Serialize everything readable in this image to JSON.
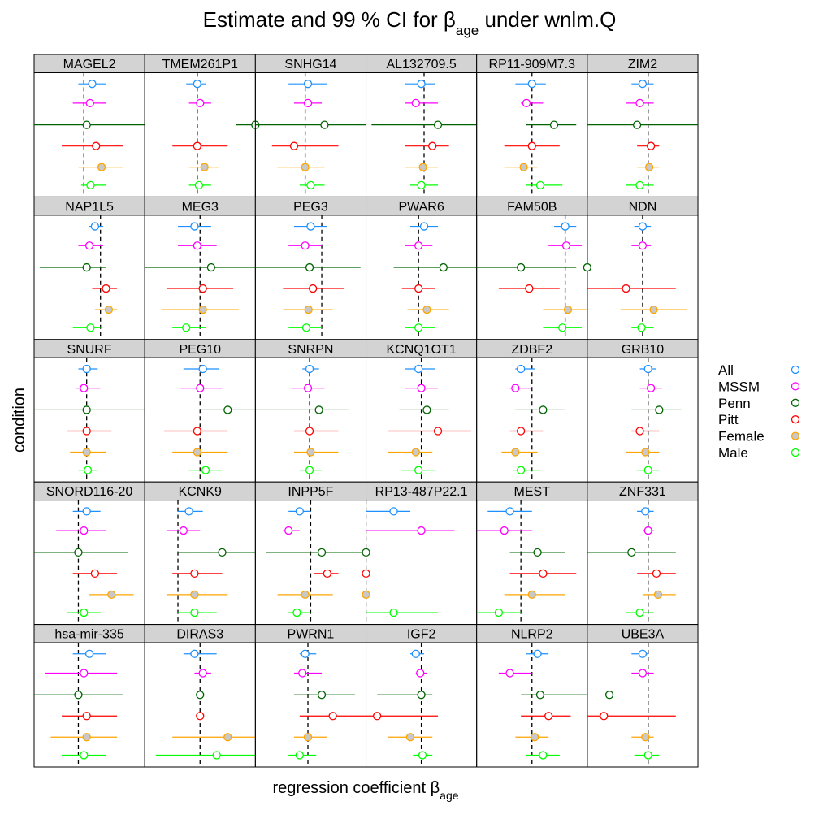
{
  "chart_data": {
    "type": "scatter",
    "title_main": "Estimate and 99 % CI for β",
    "title_sub": "age",
    "title_suffix": " under wnlm.Q",
    "xlabel_main": "regression coefficient β",
    "xlabel_sub": "age",
    "ylabel": "condition",
    "xlim": [
      -1,
      1
    ],
    "grid": false,
    "legend_position": "right",
    "conditions": [
      "All",
      "MSSM",
      "Penn",
      "Pitt",
      "Female",
      "Male"
    ],
    "colors": {
      "All": "#1E90FF",
      "MSSM": "#FF00FF",
      "Penn": "#006400",
      "Pitt": "#FF0000",
      "Female": "#FFA500",
      "Male": "#00FF00"
    },
    "fills": {
      "All": "#FFFFFF",
      "MSSM": "#FFFFFF",
      "Penn": "#FFFFFF",
      "Pitt": "#FFFFFF",
      "Female": "#C8C8C8",
      "Male": "#FFFFFF"
    },
    "panels": [
      {
        "gene": "MAGEL2",
        "ref": -0.1,
        "est": [
          0.05,
          0.01,
          -0.05,
          0.12,
          0.22,
          0.02
        ],
        "lo": [
          -0.2,
          -0.3,
          -1,
          -0.5,
          -0.2,
          -0.15
        ],
        "hi": [
          0.3,
          0.3,
          1,
          0.6,
          0.6,
          0.3
        ]
      },
      {
        "gene": "TMEM261P1",
        "ref": -0.05,
        "est": [
          -0.05,
          0.0,
          1.08,
          -0.05,
          0.08,
          -0.02
        ],
        "lo": [
          -0.25,
          -0.2,
          0.65,
          -0.5,
          -0.2,
          -0.2
        ],
        "hi": [
          0.1,
          0.2,
          1.5,
          0.5,
          0.35,
          0.2
        ]
      },
      {
        "gene": "SNHG14",
        "ref": -0.1,
        "est": [
          -0.05,
          -0.05,
          0.25,
          -0.3,
          -0.1,
          0.0
        ],
        "lo": [
          -0.4,
          -0.3,
          -1,
          -0.7,
          -0.6,
          -0.2
        ],
        "hi": [
          0.3,
          0.2,
          1,
          0.5,
          0.25,
          0.25
        ]
      },
      {
        "gene": "AL132709.5",
        "ref": 0.05,
        "est": [
          0.0,
          -0.1,
          0.3,
          0.2,
          0.03,
          0.0
        ],
        "lo": [
          -0.3,
          -0.3,
          -0.9,
          -0.3,
          -0.3,
          -0.2
        ],
        "hi": [
          0.25,
          0.3,
          1,
          0.5,
          0.3,
          0.3
        ]
      },
      {
        "gene": "RP11-909M7.3",
        "ref": 0.0,
        "est": [
          0.0,
          -0.1,
          0.4,
          0.0,
          -0.15,
          0.15
        ],
        "lo": [
          -0.3,
          -0.2,
          -0.1,
          -0.5,
          -0.5,
          -0.1
        ],
        "hi": [
          0.25,
          0.2,
          0.8,
          0.5,
          0.1,
          0.55
        ]
      },
      {
        "gene": "ZIM2",
        "ref": 0.1,
        "est": [
          0.0,
          -0.05,
          -0.1,
          0.15,
          0.12,
          -0.05
        ],
        "lo": [
          -0.2,
          -0.3,
          -1,
          -0.1,
          -0.1,
          -0.3
        ],
        "hi": [
          0.2,
          0.2,
          1,
          0.3,
          0.3,
          0.2
        ]
      },
      {
        "gene": "NAP1L5",
        "ref": 0.2,
        "est": [
          0.1,
          0.0,
          -0.05,
          0.3,
          0.35,
          0.02
        ],
        "lo": [
          0.0,
          -0.2,
          -0.9,
          0.05,
          0.1,
          -0.3
        ],
        "hi": [
          0.25,
          0.25,
          0.3,
          0.5,
          0.5,
          0.2
        ]
      },
      {
        "gene": "MEG3",
        "ref": 0.0,
        "est": [
          -0.1,
          -0.05,
          0.2,
          0.05,
          0.05,
          -0.25
        ],
        "lo": [
          -0.4,
          -0.4,
          -1,
          -0.6,
          -0.7,
          -0.5
        ],
        "hi": [
          0.2,
          0.3,
          1,
          0.6,
          0.7,
          0.1
        ]
      },
      {
        "gene": "PEG3",
        "ref": 0.2,
        "est": [
          0.0,
          -0.1,
          -0.02,
          0.04,
          -0.04,
          -0.08
        ],
        "lo": [
          -0.3,
          -0.4,
          -1,
          -0.5,
          -0.5,
          -0.4
        ],
        "hi": [
          0.3,
          0.2,
          0.9,
          0.6,
          0.4,
          0.2
        ]
      },
      {
        "gene": "PWAR6",
        "ref": -0.05,
        "est": [
          0.05,
          -0.05,
          0.4,
          -0.05,
          0.1,
          -0.05
        ],
        "lo": [
          -0.2,
          -0.3,
          -0.5,
          -0.35,
          -0.25,
          -0.3
        ],
        "hi": [
          0.3,
          0.2,
          1,
          0.25,
          0.5,
          0.25
        ]
      },
      {
        "gene": "FAM50B",
        "ref": 0.6,
        "est": [
          0.6,
          0.62,
          -0.2,
          -0.05,
          0.65,
          0.55
        ],
        "lo": [
          0.4,
          0.3,
          -1,
          -0.6,
          0.2,
          0.2
        ],
        "hi": [
          0.8,
          0.9,
          0.8,
          0.5,
          1,
          0.9
        ]
      },
      {
        "gene": "NDN",
        "ref": 0.0,
        "est": [
          0.0,
          0.0,
          -1.6,
          -0.3,
          0.2,
          -0.02
        ],
        "lo": [
          -0.15,
          -0.2,
          -1.6,
          -1,
          -0.4,
          -0.2
        ],
        "hi": [
          0.15,
          0.15,
          -1.6,
          0.6,
          0.8,
          0.2
        ]
      },
      {
        "gene": "SNURF",
        "ref": -0.05,
        "est": [
          -0.05,
          -0.1,
          -0.05,
          -0.05,
          -0.05,
          -0.03
        ],
        "lo": [
          -0.2,
          -0.25,
          -1,
          -0.4,
          -0.35,
          -0.2
        ],
        "hi": [
          0.15,
          0.2,
          1,
          0.4,
          0.3,
          0.15
        ]
      },
      {
        "gene": "PEG10",
        "ref": 0.0,
        "est": [
          0.05,
          0.0,
          0.5,
          -0.05,
          -0.05,
          0.1
        ],
        "lo": [
          -0.3,
          -0.35,
          0.0,
          -0.65,
          -0.5,
          -0.2
        ],
        "hi": [
          0.35,
          0.4,
          1,
          0.5,
          0.5,
          0.4
        ]
      },
      {
        "gene": "SNRPN",
        "ref": -0.02,
        "est": [
          -0.02,
          -0.05,
          0.15,
          -0.02,
          0.0,
          -0.02
        ],
        "lo": [
          -0.15,
          -0.35,
          -1,
          -0.3,
          -0.3,
          -0.2
        ],
        "hi": [
          0.15,
          0.25,
          0.7,
          0.5,
          0.5,
          0.2
        ]
      },
      {
        "gene": "KCNQ1OT1",
        "ref": 0.0,
        "est": [
          -0.05,
          0.0,
          0.1,
          0.3,
          -0.1,
          -0.05
        ],
        "lo": [
          -0.3,
          -0.3,
          -0.4,
          -0.6,
          -0.6,
          -0.35
        ],
        "hi": [
          0.25,
          0.3,
          0.5,
          0.9,
          0.2,
          0.25
        ]
      },
      {
        "gene": "ZDBF2",
        "ref": 0.0,
        "est": [
          -0.2,
          -0.3,
          0.2,
          -0.2,
          -0.3,
          -0.2
        ],
        "lo": [
          -0.3,
          -0.4,
          -0.3,
          -0.4,
          -0.55,
          -0.35
        ],
        "hi": [
          0.05,
          0.0,
          0.6,
          0.2,
          0.1,
          0.15
        ]
      },
      {
        "gene": "GRB10",
        "ref": 0.1,
        "est": [
          0.1,
          0.15,
          0.3,
          -0.05,
          0.05,
          0.1
        ],
        "lo": [
          -0.05,
          -0.05,
          -0.2,
          -0.2,
          -0.3,
          -0.1
        ],
        "hi": [
          0.25,
          0.35,
          0.7,
          0.3,
          0.3,
          0.3
        ]
      },
      {
        "gene": "SNORD116-20",
        "ref": -0.2,
        "est": [
          -0.05,
          -0.1,
          -0.2,
          0.1,
          0.4,
          -0.1
        ],
        "lo": [
          -0.3,
          -0.6,
          -1,
          -0.3,
          0.0,
          -0.4
        ],
        "hi": [
          0.2,
          0.3,
          0.7,
          0.5,
          0.8,
          0.2
        ]
      },
      {
        "gene": "KCNK9",
        "ref": -0.4,
        "est": [
          -0.2,
          -0.3,
          0.4,
          -0.1,
          -0.1,
          -0.1
        ],
        "lo": [
          -0.4,
          -0.6,
          -0.4,
          -0.5,
          -0.6,
          -0.4
        ],
        "hi": [
          0.05,
          0.0,
          1,
          0.4,
          0.5,
          0.3
        ]
      },
      {
        "gene": "INPP5F",
        "ref": 0.0,
        "est": [
          -0.2,
          -0.4,
          0.2,
          0.3,
          -0.1,
          -0.25
        ],
        "lo": [
          -0.4,
          -0.5,
          -0.8,
          0.05,
          -0.6,
          -0.4
        ],
        "hi": [
          0.0,
          -0.2,
          1,
          0.5,
          0.4,
          0.0
        ]
      },
      {
        "gene": "RP13-487P22.1",
        "ref": -1.0,
        "est": [
          -0.5,
          0.0,
          -2.5,
          -2.5,
          -2.5,
          -0.5
        ],
        "lo": [
          -1.4,
          -1.0,
          -2.5,
          -2.5,
          -2.5,
          -1.6
        ],
        "hi": [
          -0.2,
          0.6,
          -2.5,
          -2.5,
          -2.5,
          0.3
        ]
      },
      {
        "gene": "MEST",
        "ref": -0.2,
        "est": [
          -0.4,
          -0.5,
          0.1,
          0.2,
          0.0,
          -0.6
        ],
        "lo": [
          -0.8,
          -1,
          -0.4,
          -0.4,
          -0.5,
          -1
        ],
        "hi": [
          0.0,
          0.0,
          0.6,
          0.8,
          0.6,
          -0.2
        ]
      },
      {
        "gene": "ZNF331",
        "ref": 0.1,
        "est": [
          0.05,
          0.1,
          -0.2,
          0.25,
          0.28,
          -0.05
        ],
        "lo": [
          -0.1,
          0.0,
          -1,
          -0.1,
          0.0,
          -0.3
        ],
        "hi": [
          0.2,
          0.2,
          0.6,
          0.6,
          0.6,
          0.2
        ]
      },
      {
        "gene": "hsa-mir-335",
        "ref": -0.2,
        "est": [
          0.0,
          -0.1,
          -0.2,
          -0.05,
          -0.05,
          -0.1
        ],
        "lo": [
          -0.3,
          -0.8,
          -1,
          -0.5,
          -0.7,
          -0.5
        ],
        "hi": [
          0.3,
          0.5,
          0.6,
          0.5,
          0.5,
          0.3
        ]
      },
      {
        "gene": "DIRAS3",
        "ref": 0.0,
        "est": [
          -0.1,
          0.05,
          0.0,
          0.0,
          0.5,
          0.3
        ],
        "lo": [
          -0.3,
          -0.1,
          0.0,
          0.0,
          -0.5,
          -0.8
        ],
        "hi": [
          0.3,
          0.2,
          0.0,
          0.0,
          1.2,
          1.2
        ]
      },
      {
        "gene": "PWRN1",
        "ref": -0.05,
        "est": [
          -0.1,
          -0.15,
          0.2,
          0.4,
          -0.05,
          -0.2
        ],
        "lo": [
          -0.2,
          -0.3,
          -0.3,
          -0.2,
          -0.3,
          -0.4
        ],
        "hi": [
          0.1,
          0.2,
          0.8,
          1,
          0.3,
          0.1
        ]
      },
      {
        "gene": "IGF2",
        "ref": 0.0,
        "est": [
          -0.1,
          -0.02,
          0.0,
          -0.8,
          -0.2,
          0.02
        ],
        "lo": [
          -0.2,
          -0.1,
          -0.8,
          -1,
          -0.6,
          -0.15
        ],
        "hi": [
          0.05,
          0.1,
          0.2,
          0.3,
          0.2,
          0.2
        ]
      },
      {
        "gene": "NLRP2",
        "ref": 0.0,
        "est": [
          0.1,
          -0.4,
          0.15,
          0.3,
          0.05,
          0.2
        ],
        "lo": [
          -0.1,
          -0.6,
          -0.2,
          -0.2,
          -0.3,
          -0.1
        ],
        "hi": [
          0.3,
          0.0,
          1,
          0.7,
          0.3,
          0.5
        ]
      },
      {
        "gene": "UBE3A",
        "ref": 0.1,
        "est": [
          0.0,
          0.0,
          -0.6,
          -0.7,
          0.05,
          0.1
        ],
        "lo": [
          -0.2,
          -0.2,
          -0.6,
          -1.5,
          -0.2,
          -0.15
        ],
        "hi": [
          0.1,
          0.2,
          -0.6,
          0.6,
          0.2,
          0.3
        ]
      }
    ]
  }
}
